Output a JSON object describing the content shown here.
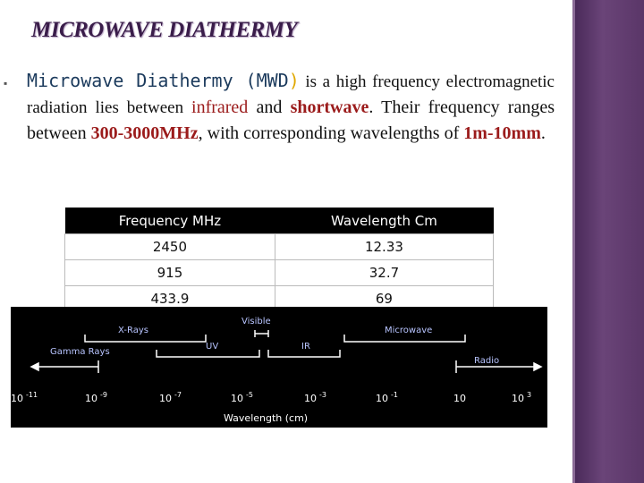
{
  "slide": {
    "title": "MICROWAVE DIATHERMY",
    "paragraph": [
      "Microwave Diathermy (MWD",
      ")",
      " is a high frequency electromagnetic radiation lies between ",
      "infrared",
      " and ",
      "shortwave",
      ". Their frequency ranges between ",
      "300-3000MHz",
      ", with corresponding wavelengths of ",
      "1m-10mm",
      "."
    ],
    "table": {
      "header": [
        "Frequency MHz",
        "Wavelength Cm"
      ],
      "rows": [
        [
          "2450",
          "12.33"
        ],
        [
          "915",
          "32.7"
        ],
        [
          "433.9",
          "69"
        ]
      ]
    },
    "spectrum": {
      "labels": {
        "x_rays": "X-Rays",
        "visible": "Visible",
        "gamma": "Gamma Rays",
        "uv": "UV",
        "ir": "IR",
        "microwave": "Microwave",
        "radio": "Radio"
      },
      "ticks": [
        {
          "base": "10",
          "exp": "-11"
        },
        {
          "base": "10",
          "exp": "-9"
        },
        {
          "base": "10",
          "exp": "-7"
        },
        {
          "base": "10",
          "exp": "-5"
        },
        {
          "base": "10",
          "exp": "-3"
        },
        {
          "base": "10",
          "exp": "-1"
        },
        {
          "base": "10",
          "exp": ""
        },
        {
          "base": "10",
          "exp": "3"
        }
      ],
      "axis_label": "Wavelength (cm)"
    }
  }
}
